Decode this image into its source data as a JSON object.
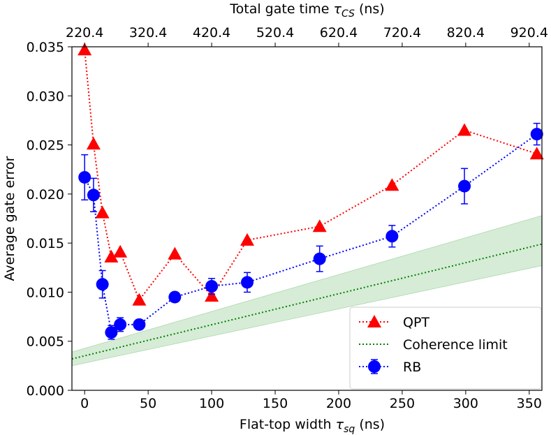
{
  "chart_data": {
    "type": "scatter",
    "xlabel": "Flat-top width τsq (ns)",
    "xlabel_main": "Flat-top width ",
    "xlabel_symbol": "τ",
    "xlabel_sub": "sq",
    "xlabel_unit": " (ns)",
    "x2label": "Total gate time τCS (ns)",
    "x2label_main": "Total gate time ",
    "x2label_symbol": "τ",
    "x2label_sub": "CS",
    "x2label_unit": " (ns)",
    "ylabel": "Average gate error",
    "xlim": [
      -10,
      360
    ],
    "ylim": [
      0,
      0.035
    ],
    "x_ticks": [
      0,
      50,
      100,
      150,
      200,
      250,
      300,
      350
    ],
    "x_tick_labels": [
      "0",
      "50",
      "100",
      "150",
      "200",
      "250",
      "300",
      "350"
    ],
    "y_ticks": [
      0,
      0.005,
      0.01,
      0.015,
      0.02,
      0.025,
      0.03,
      0.035
    ],
    "y_tick_labels": [
      "0.000",
      "0.005",
      "0.010",
      "0.015",
      "0.020",
      "0.025",
      "0.030",
      "0.035"
    ],
    "x2_ticks": [
      0,
      50,
      100,
      150,
      200,
      250,
      300,
      350
    ],
    "x2_tick_labels": [
      "220.4",
      "320.4",
      "420.4",
      "520.4",
      "620.4",
      "720.4",
      "820.4",
      "920.4"
    ],
    "grid": false,
    "legend_position": "bottom-right",
    "series": [
      {
        "name": "QPT",
        "marker": "triangle",
        "color": "#ff0000",
        "linestyle": "dotted",
        "x": [
          0,
          7,
          14,
          21,
          28,
          43,
          71,
          100,
          128,
          185,
          242,
          299,
          356
        ],
        "y": [
          0.0347,
          0.0251,
          0.0181,
          0.0136,
          0.0141,
          0.0092,
          0.0139,
          0.0096,
          0.0153,
          0.0167,
          0.0209,
          0.0265,
          0.0241
        ]
      },
      {
        "name": "Coherence limit",
        "marker": "none",
        "color": "#008000",
        "linestyle": "dotted",
        "band_color": "#b5dcb5",
        "x": [
          -10,
          360
        ],
        "y": [
          0.0032,
          0.0149
        ],
        "band_lower": [
          0.0025,
          0.0127
        ],
        "band_upper": [
          0.0039,
          0.0178
        ]
      },
      {
        "name": "RB",
        "marker": "circle",
        "color": "#0000ff",
        "linestyle": "dotted",
        "x": [
          0,
          7,
          14,
          21,
          28,
          43,
          71,
          100,
          128,
          185,
          242,
          299,
          356
        ],
        "y": [
          0.0217,
          0.0199,
          0.0108,
          0.0059,
          0.0067,
          0.0067,
          0.0095,
          0.0106,
          0.011,
          0.0134,
          0.0157,
          0.0208,
          0.0261
        ],
        "err": [
          0.0023,
          0.0017,
          0.0014,
          0.0007,
          0.0007,
          0.0005,
          0.0004,
          0.0008,
          0.001,
          0.0013,
          0.0011,
          0.0018,
          0.0011
        ]
      }
    ]
  }
}
